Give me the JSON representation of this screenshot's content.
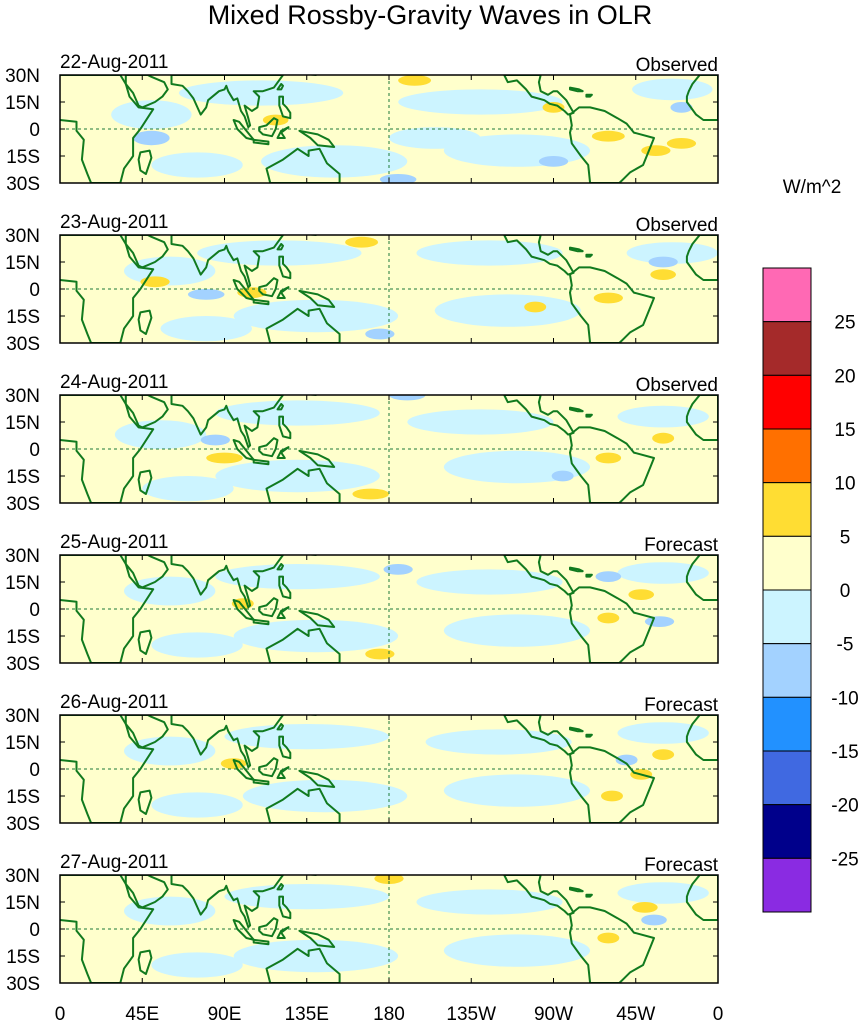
{
  "figure": {
    "title": "Mixed Rossby-Gravity Waves in OLR",
    "units": "W/m^2"
  },
  "axes": {
    "lat_labels": [
      "30N",
      "15N",
      "0",
      "15S",
      "30S"
    ],
    "lat_values": [
      30,
      15,
      0,
      -15,
      -30
    ],
    "lon_labels": [
      "0",
      "45E",
      "90E",
      "135E",
      "180",
      "135W",
      "90W",
      "45W",
      "0"
    ],
    "lon_values": [
      0,
      45,
      90,
      135,
      180,
      225,
      270,
      315,
      360
    ]
  },
  "panels": [
    {
      "date": "22-Aug-2011",
      "kind": "Observed"
    },
    {
      "date": "23-Aug-2011",
      "kind": "Observed"
    },
    {
      "date": "24-Aug-2011",
      "kind": "Observed"
    },
    {
      "date": "25-Aug-2011",
      "kind": "Forecast"
    },
    {
      "date": "26-Aug-2011",
      "kind": "Forecast"
    },
    {
      "date": "27-Aug-2011",
      "kind": "Forecast"
    }
  ],
  "colorbar": {
    "labels": [
      "25",
      "20",
      "15",
      "10",
      "5",
      "0",
      "-5",
      "-10",
      "-15",
      "-20",
      "-25"
    ],
    "colors": [
      "#ff69b4",
      "#a52a2a",
      "#ff0000",
      "#ff7000",
      "#ffdd33",
      "#ffffcc",
      "#ccf4ff",
      "#a3d2ff",
      "#2291ff",
      "#4069e1",
      "#00008b",
      "#8a2be2"
    ]
  },
  "colors": {
    "background": "#ffffcc",
    "land": "#117a1f",
    "borders": "#117a1f",
    "neg1": "#ccf4ff",
    "neg2": "#a3d2ff",
    "neg3": "#4069e1",
    "pos2": "#ffdd33",
    "guide": "#1d7a3a"
  }
}
